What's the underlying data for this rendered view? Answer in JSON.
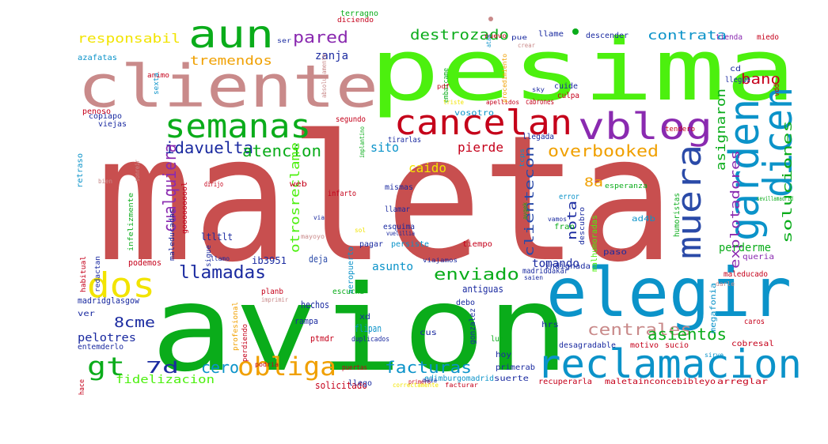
{
  "words": [
    {
      "text": "maleta",
      "color": "#c84f4f"
    },
    {
      "text": "avion",
      "color": "#0aac1a"
    },
    {
      "text": "pesima",
      "color": "#4cf00e"
    },
    {
      "text": "cliente",
      "color": "#c98a8a"
    },
    {
      "text": "elegir",
      "color": "#0b93c9"
    },
    {
      "text": "reclamacion",
      "color": "#0b93c9"
    },
    {
      "text": "semanas",
      "color": "#0aac1a"
    },
    {
      "text": "cancelan",
      "color": "#c5001a"
    },
    {
      "text": "vblog",
      "color": "#8a2ab0"
    },
    {
      "text": "aun",
      "color": "#0aac1a"
    },
    {
      "text": "dos",
      "color": "#f2e400"
    },
    {
      "text": "garden",
      "color": "#0b93c9"
    },
    {
      "text": "dicen",
      "color": "#0b93c9"
    },
    {
      "text": "muera",
      "color": "#2a4aa8"
    },
    {
      "text": "obliga",
      "color": "#f0a000"
    },
    {
      "text": "gt",
      "color": "#0aac1a"
    },
    {
      "text": "llamadas",
      "color": "#1a2aa0"
    },
    {
      "text": "idavuelta",
      "color": "#1a2aa0"
    },
    {
      "text": "atencion",
      "color": "#0aac1a"
    },
    {
      "text": "overbooked",
      "color": "#f0a000"
    },
    {
      "text": "enviado",
      "color": "#0aac1a"
    },
    {
      "text": "centrales",
      "color": "#c98a8a"
    },
    {
      "text": "asientos",
      "color": "#0aac1a"
    },
    {
      "text": "facturas",
      "color": "#0b93c9"
    },
    {
      "text": "cero",
      "color": "#0b93c9"
    },
    {
      "text": "7d",
      "color": "#1a2aa0"
    },
    {
      "text": "8cme",
      "color": "#1a2aa0"
    },
    {
      "text": "pelotres",
      "color": "#1a2aa0"
    },
    {
      "text": "pared",
      "color": "#8a2ab0"
    },
    {
      "text": "destrozado",
      "color": "#0aac1a"
    },
    {
      "text": "contrata",
      "color": "#0b93c9"
    },
    {
      "text": "bano",
      "color": "#c5001a"
    },
    {
      "text": "responsabil",
      "color": "#f2e400"
    },
    {
      "text": "tremendos",
      "color": "#f0a000"
    },
    {
      "text": "zanja",
      "color": "#1a2aa0"
    },
    {
      "text": "cualquiera",
      "color": "#8a2ab0"
    },
    {
      "text": "pierde",
      "color": "#c5001a"
    },
    {
      "text": "sito",
      "color": "#0b93c9"
    },
    {
      "text": "caido",
      "color": "#f2e400"
    },
    {
      "text": "clientecon",
      "color": "#2a4aa8"
    },
    {
      "text": "otrosreclame",
      "color": "#4cf00e"
    },
    {
      "text": "nota",
      "color": "#1a2aa0"
    },
    {
      "text": "8a",
      "color": "#f0a000"
    },
    {
      "text": "explotadores",
      "color": "#8a2ab0"
    },
    {
      "text": "asignaron",
      "color": "#0aac1a"
    },
    {
      "text": "soluciones",
      "color": "#0aac1a"
    },
    {
      "text": "perderme",
      "color": "#0aac1a"
    },
    {
      "text": "asunto",
      "color": "#0b93c9"
    },
    {
      "text": "tomando",
      "color": "#1a2aa0"
    },
    {
      "text": "fidelizacion",
      "color": "#4cf00e"
    },
    {
      "text": "solicitado",
      "color": "#c5001a"
    },
    {
      "text": "ltltlt",
      "color": "#1a2aa0"
    },
    {
      "text": "ib3951",
      "color": "#1a2aa0"
    },
    {
      "text": "deja",
      "color": "#2a4aa8"
    },
    {
      "text": "antiguas",
      "color": "#1a2aa0"
    },
    {
      "text": "madriddakar",
      "color": "#1a2aa0"
    },
    {
      "text": "madridglasgow",
      "color": "#1a2aa0"
    },
    {
      "text": "entemderlo",
      "color": "#1a2aa0"
    },
    {
      "text": "podemos",
      "color": "#c5001a"
    },
    {
      "text": "hechos",
      "color": "#1a2aa0"
    },
    {
      "text": "rampa",
      "color": "#1a2aa0"
    },
    {
      "text": "ptmdr",
      "color": "#c5001a"
    },
    {
      "text": "flipan",
      "color": "#0b93c9"
    },
    {
      "text": "edimburgomadrid",
      "color": "#0b93c9"
    },
    {
      "text": "recuperarla",
      "color": "#c5001a"
    },
    {
      "text": "maletainconcebibleyo",
      "color": "#c5001a"
    },
    {
      "text": "arreglar",
      "color": "#c5001a"
    },
    {
      "text": "desagradable",
      "color": "#1a2aa0"
    },
    {
      "text": "motivo",
      "color": "#c5001a"
    },
    {
      "text": "sucio",
      "color": "#c5001a"
    },
    {
      "text": "cobresal",
      "color": "#c5001a"
    },
    {
      "text": "suerte",
      "color": "#1a2aa0"
    },
    {
      "text": "primerab",
      "color": "#1a2aa0"
    },
    {
      "text": "llego",
      "color": "#1a2aa0"
    },
    {
      "text": "hrs",
      "color": "#1a2aa0"
    },
    {
      "text": "indignada",
      "color": "#1a2aa0"
    },
    {
      "text": "megafonia",
      "color": "#0b93c9"
    },
    {
      "text": "queria",
      "color": "#8a2ab0"
    },
    {
      "text": "paso",
      "color": "#1a2aa0"
    },
    {
      "text": "humoristas",
      "color": "#0aac1a"
    },
    {
      "text": "ad4b",
      "color": "#0b93c9"
    },
    {
      "text": "fran",
      "color": "#0aac1a"
    },
    {
      "text": "malhumoradas",
      "color": "#4cf00e"
    },
    {
      "text": "tiempo",
      "color": "#c5001a"
    },
    {
      "text": "descubro",
      "color": "#1a2aa0"
    },
    {
      "text": "error",
      "color": "#0b93c9"
    },
    {
      "text": "esperanza",
      "color": "#0aac1a"
    },
    {
      "text": "llamar",
      "color": "#1a2aa0"
    },
    {
      "text": "infarto",
      "color": "#c5001a"
    },
    {
      "text": "web",
      "color": "#c5001a"
    },
    {
      "text": "mismas",
      "color": "#1a2aa0"
    },
    {
      "text": "esquima",
      "color": "#1a2aa0"
    },
    {
      "text": "pagar",
      "color": "#1a2aa0"
    },
    {
      "text": "persiste",
      "color": "#0b93c9"
    },
    {
      "text": "viajamos",
      "color": "#1a2aa0"
    },
    {
      "text": "vuelillia",
      "color": "#1a2aa0"
    },
    {
      "text": "llegada",
      "color": "#1a2aa0"
    },
    {
      "text": "tirarlas",
      "color": "#1a2aa0"
    },
    {
      "text": "segundo",
      "color": "#c5001a"
    },
    {
      "text": "viejas",
      "color": "#1a2aa0"
    },
    {
      "text": "copiapo",
      "color": "#1a2aa0"
    },
    {
      "text": "retraso",
      "color": "#0b93c9"
    },
    {
      "text": "penoso",
      "color": "#c5001a"
    },
    {
      "text": "azafatas",
      "color": "#0b93c9"
    },
    {
      "text": "animo",
      "color": "#c5001a"
    },
    {
      "text": "sexta",
      "color": "#0b93c9"
    },
    {
      "text": "terragno",
      "color": "#0aac1a"
    },
    {
      "text": "diciendo",
      "color": "#c5001a"
    },
    {
      "text": "llame",
      "color": "#1a2aa0"
    },
    {
      "text": "descender",
      "color": "#1a2aa0"
    },
    {
      "text": "tienda",
      "color": "#8a2ab0"
    },
    {
      "text": "miedo",
      "color": "#c5001a"
    },
    {
      "text": "cd",
      "color": "#1a2aa0"
    },
    {
      "text": "llegue",
      "color": "#1a2aa0"
    },
    {
      "text": "tendero",
      "color": "#c5001a"
    },
    {
      "text": "vdd",
      "color": "#c5001a"
    },
    {
      "text": "cuide",
      "color": "#1a2aa0"
    },
    {
      "text": "culpa",
      "color": "#c5001a"
    },
    {
      "text": "cabrones",
      "color": "#c5001a"
    },
    {
      "text": "vosotro",
      "color": "#0b93c9"
    },
    {
      "text": "embarcame",
      "color": "#0aac1a"
    },
    {
      "text": "pdf",
      "color": "#c5001a"
    },
    {
      "text": "triste",
      "color": "#f2e400"
    },
    {
      "text": "apellidos",
      "color": "#c5001a"
    },
    {
      "text": "sky",
      "color": "#1a2aa0"
    },
    {
      "text": "ser",
      "color": "#1a2aa0"
    },
    {
      "text": "nuevo",
      "color": "#c5001a"
    },
    {
      "text": "pue",
      "color": "#1a2aa0"
    },
    {
      "text": "aeropuerto",
      "color": "#0b93c9"
    },
    {
      "text": "escucha",
      "color": "#0aac1a"
    },
    {
      "text": "planb",
      "color": "#c5001a"
    },
    {
      "text": "imprimir",
      "color": "#c98a8a"
    },
    {
      "text": "maleducado",
      "color": "#c5001a"
    },
    {
      "text": "darle",
      "color": "#c98a8a"
    },
    {
      "text": "caros",
      "color": "#c5001a"
    },
    {
      "text": "debo",
      "color": "#1a2aa0"
    },
    {
      "text": "xd",
      "color": "#1a2aa0"
    },
    {
      "text": "duplicados",
      "color": "#1a2aa0"
    },
    {
      "text": "luz",
      "color": "#0aac1a"
    },
    {
      "text": "hoy",
      "color": "#1a2aa0"
    },
    {
      "text": "gonzalez",
      "color": "#1a2aa0"
    },
    {
      "text": "cus",
      "color": "#1a2aa0"
    },
    {
      "text": "profesional",
      "color": "#f0a000"
    },
    {
      "text": "perdiendo",
      "color": "#c5001a"
    },
    {
      "text": "podria",
      "color": "#c5001a"
    },
    {
      "text": "sirve",
      "color": "#0b93c9"
    },
    {
      "text": "hace",
      "color": "#c5001a"
    },
    {
      "text": "ver",
      "color": "#1a2aa0"
    },
    {
      "text": "habitual",
      "color": "#c5001a"
    },
    {
      "text": "redactan",
      "color": "#1a2aa0"
    },
    {
      "text": "sigue",
      "color": "#1a2aa0"
    },
    {
      "text": "llamo",
      "color": "#1a2aa0"
    },
    {
      "text": "infelizmente",
      "color": "#0aac1a"
    },
    {
      "text": "maleducadas",
      "color": "#1a2aa0"
    },
    {
      "text": "goooooooool",
      "color": "#c5001a"
    },
    {
      "text": "dirijo",
      "color": "#c5001a"
    },
    {
      "text": "primero",
      "color": "#c5001a"
    },
    {
      "text": "puertas",
      "color": "#c5001a"
    },
    {
      "text": "correctamente",
      "color": "#f2e400"
    },
    {
      "text": "facturar",
      "color": "#c5001a"
    },
    {
      "text": "saien",
      "color": "#1a2aa0"
    },
    {
      "text": "sevillamadrid",
      "color": "#0aac1a"
    },
    {
      "text": "vamos",
      "color": "#1a2aa0"
    },
    {
      "text": "avgek",
      "color": "#0aac1a"
    },
    {
      "text": "tcps",
      "color": "#0b93c9"
    },
    {
      "text": "implantino",
      "color": "#0aac1a"
    },
    {
      "text": "absolutamente",
      "color": "#c98a8a"
    },
    {
      "text": "procedimiento",
      "color": "#f0a000"
    },
    {
      "text": "maia",
      "color": "#1a2aa0"
    },
    {
      "text": "bien",
      "color": "#c98a8a"
    },
    {
      "text": "sonreir",
      "color": "#c98a8a"
    },
    {
      "text": "sol",
      "color": "#f2e400"
    },
    {
      "text": "via",
      "color": "#1a2aa0"
    },
    {
      "text": "ataa",
      "color": "#0b93c9"
    },
    {
      "text": "crear",
      "color": "#c98a8a"
    },
    {
      "text": "mayoyo",
      "color": "#c98a8a"
    }
  ]
}
